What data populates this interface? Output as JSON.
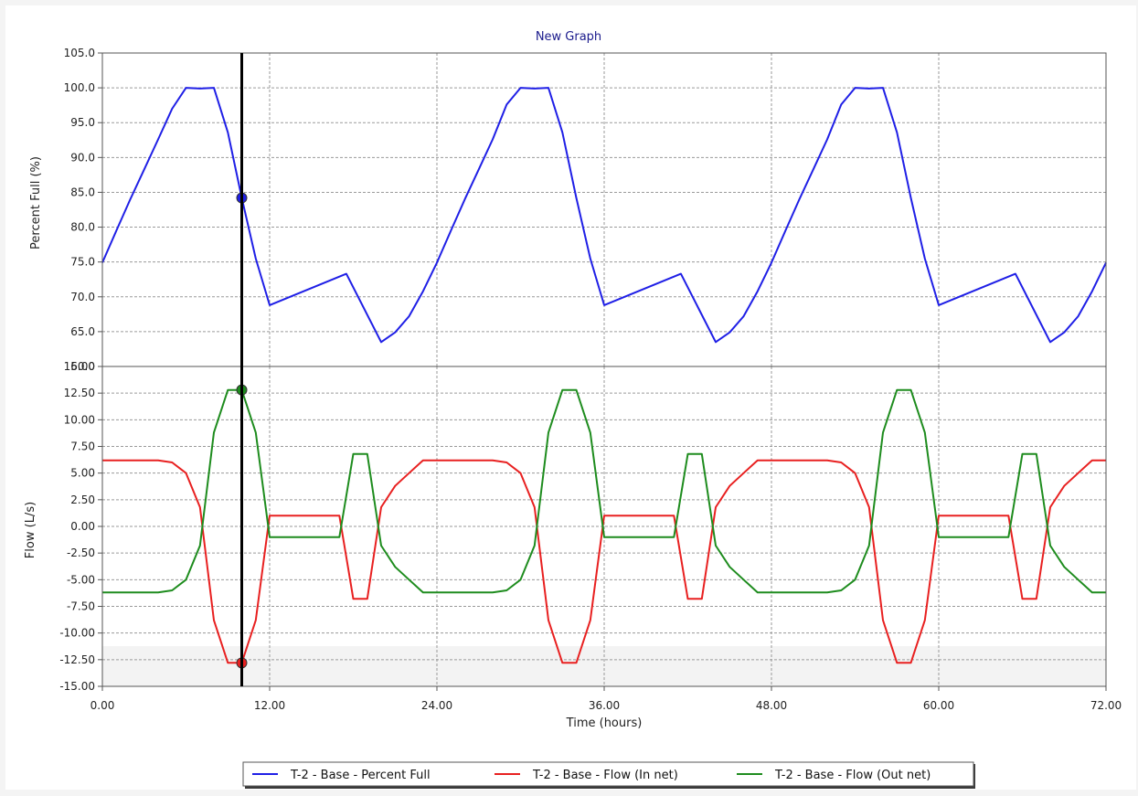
{
  "colors": {
    "percent_full": "#1f1fe6",
    "flow_in": "#e82020",
    "flow_out": "#1e8c1e",
    "cursor": "#000000",
    "grid": "#9a9a9a"
  },
  "chart_data": {
    "type": "line",
    "title": "New Graph",
    "xlabel": "Time (hours)",
    "xlim": [
      0,
      72
    ],
    "xticks": [
      "0.00",
      "12.00",
      "24.00",
      "36.00",
      "48.00",
      "60.00",
      "72.00"
    ],
    "cursor_x": 10,
    "grid": true,
    "legend_position": "bottom-center",
    "panels": [
      {
        "ylabel": "Percent Full (%)",
        "ylim": [
          60,
          105
        ],
        "yticks": [
          "60.0",
          "65.0",
          "70.0",
          "75.0",
          "80.0",
          "85.0",
          "90.0",
          "95.0",
          "100.0",
          "105.0"
        ],
        "series": [
          {
            "name": "T-2 - Base - Percent Full",
            "color_key": "percent_full",
            "x": [
              0,
              1,
              2,
              3,
              4,
              5,
              6,
              7,
              8,
              9,
              10,
              11,
              12,
              17.5,
              20,
              21,
              22,
              23,
              24,
              25,
              26,
              27,
              28,
              29,
              30,
              31,
              32,
              33,
              34,
              35,
              36,
              41.5,
              44,
              45,
              46,
              47,
              48,
              49,
              50,
              51,
              52,
              53,
              54,
              55,
              56,
              57,
              58,
              59,
              60,
              65.5,
              68,
              69,
              70,
              71,
              72
            ],
            "y": [
              74.9,
              79.5,
              84,
              88.3,
              92.6,
              97,
              100,
              99.9,
              100,
              93.6,
              84.2,
              75.5,
              68.8,
              73.3,
              63.5,
              64.9,
              67.2,
              70.8,
              74.9,
              79.5,
              84,
              88.3,
              92.6,
              97.6,
              100,
              99.9,
              100,
              93.6,
              84.2,
              75.5,
              68.8,
              73.3,
              63.5,
              64.9,
              67.2,
              70.8,
              74.9,
              79.5,
              84,
              88.3,
              92.6,
              97.6,
              100,
              99.9,
              100,
              93.6,
              84.2,
              75.5,
              68.8,
              73.3,
              63.5,
              64.9,
              67.2,
              70.8,
              74.9
            ]
          }
        ],
        "markers": [
          {
            "x": 10,
            "y": 84.2,
            "color_key": "percent_full"
          }
        ]
      },
      {
        "ylabel": "Flow (L/s)",
        "ylim": [
          -15,
          15
        ],
        "yticks": [
          "-15.00",
          "-12.50",
          "-10.00",
          "-7.50",
          "-5.00",
          "-2.50",
          "0.00",
          "2.50",
          "5.00",
          "7.50",
          "10.00",
          "12.50",
          "15.00"
        ],
        "series": [
          {
            "name": "T-2 - Base - Flow (In net)",
            "color_key": "flow_in",
            "x": [
              0,
              1,
              2,
              3,
              4,
              5,
              6,
              7,
              8,
              9,
              10,
              11,
              12,
              17,
              18,
              19,
              20,
              21,
              22,
              23,
              24,
              25,
              26,
              27,
              28,
              29,
              30,
              31,
              32,
              33,
              34,
              35,
              36,
              41,
              42,
              43,
              44,
              45,
              46,
              47,
              48,
              49,
              50,
              51,
              52,
              53,
              54,
              55,
              56,
              57,
              58,
              59,
              60,
              65,
              66,
              67,
              68,
              69,
              70,
              71,
              72
            ],
            "y": [
              6.2,
              6.2,
              6.2,
              6.2,
              6.2,
              6.0,
              5.0,
              1.8,
              -8.8,
              -12.8,
              -12.8,
              -8.8,
              1.0,
              1.0,
              -6.8,
              -6.8,
              1.8,
              3.8,
              5.0,
              6.2,
              6.2,
              6.2,
              6.2,
              6.2,
              6.2,
              6.0,
              5.0,
              1.8,
              -8.8,
              -12.8,
              -12.8,
              -8.8,
              1.0,
              1.0,
              -6.8,
              -6.8,
              1.8,
              3.8,
              5.0,
              6.2,
              6.2,
              6.2,
              6.2,
              6.2,
              6.2,
              6.0,
              5.0,
              1.8,
              -8.8,
              -12.8,
              -12.8,
              -8.8,
              1.0,
              1.0,
              -6.8,
              -6.8,
              1.8,
              3.8,
              5.0,
              6.2,
              6.2
            ]
          },
          {
            "name": "T-2 - Base - Flow (Out net)",
            "color_key": "flow_out",
            "x": [
              0,
              1,
              2,
              3,
              4,
              5,
              6,
              7,
              8,
              9,
              10,
              11,
              12,
              17,
              18,
              19,
              20,
              21,
              22,
              23,
              24,
              25,
              26,
              27,
              28,
              29,
              30,
              31,
              32,
              33,
              34,
              35,
              36,
              41,
              42,
              43,
              44,
              45,
              46,
              47,
              48,
              49,
              50,
              51,
              52,
              53,
              54,
              55,
              56,
              57,
              58,
              59,
              60,
              65,
              66,
              67,
              68,
              69,
              70,
              71,
              72
            ],
            "y": [
              -6.2,
              -6.2,
              -6.2,
              -6.2,
              -6.2,
              -6.0,
              -5.0,
              -1.8,
              8.8,
              12.8,
              12.8,
              8.8,
              -1.0,
              -1.0,
              6.8,
              6.8,
              -1.8,
              -3.8,
              -5.0,
              -6.2,
              -6.2,
              -6.2,
              -6.2,
              -6.2,
              -6.2,
              -6.0,
              -5.0,
              -1.8,
              8.8,
              12.8,
              12.8,
              8.8,
              -1.0,
              -1.0,
              6.8,
              6.8,
              -1.8,
              -3.8,
              -5.0,
              -6.2,
              -6.2,
              -6.2,
              -6.2,
              -6.2,
              -6.2,
              -6.0,
              -5.0,
              -1.8,
              8.8,
              12.8,
              12.8,
              8.8,
              -1.0,
              -1.0,
              6.8,
              6.8,
              -1.8,
              -3.8,
              -5.0,
              -6.2,
              -6.2
            ]
          }
        ],
        "markers": [
          {
            "x": 10,
            "y": 12.8,
            "color_key": "flow_out"
          },
          {
            "x": 10,
            "y": -12.8,
            "color_key": "flow_in"
          }
        ]
      }
    ]
  }
}
